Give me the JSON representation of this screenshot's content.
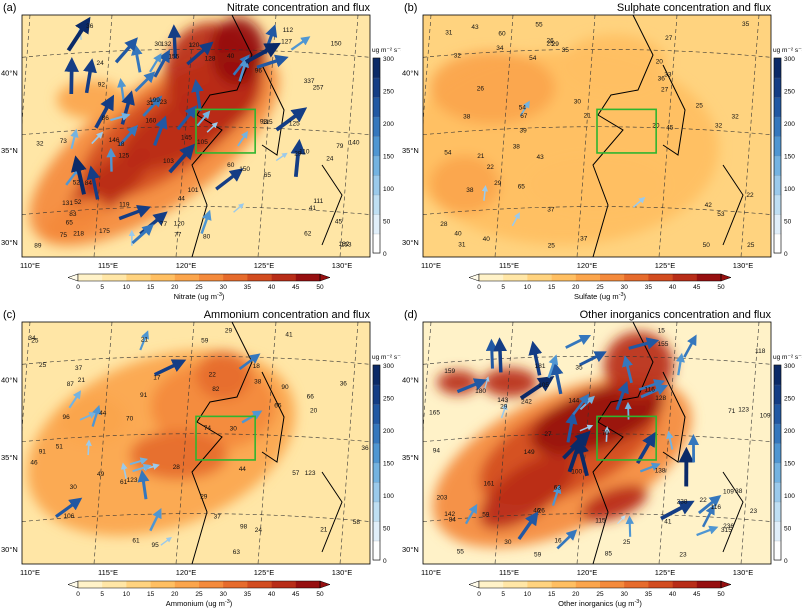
{
  "common": {
    "lon_ticks": [
      "110°E",
      "115°E",
      "120°E",
      "125°E",
      "130°E"
    ],
    "lat_ticks": [
      "40°N",
      "35°N",
      "30°N"
    ],
    "conc_ticks": [
      "0",
      "5",
      "10",
      "15",
      "20",
      "25",
      "30",
      "35",
      "40",
      "45",
      "50"
    ],
    "flux_unit": "ug m⁻² s⁻¹",
    "flux_ticks": [
      "300",
      "250",
      "200",
      "150",
      "100",
      "50",
      "0"
    ],
    "colors": {
      "conc": [
        "#fffbea",
        "#fff2c8",
        "#ffe6a6",
        "#ffd37f",
        "#ffbf62",
        "#fba54c",
        "#f48a3c",
        "#e66b2c",
        "#d24c20",
        "#b82d18",
        "#960f10"
      ],
      "flux": [
        "#ffffff",
        "#e1effa",
        "#bfdff3",
        "#9bcaeb",
        "#74b3e1",
        "#4f96d2",
        "#3577bd",
        "#2158a3",
        "#143d85",
        "#0b2a68"
      ],
      "box": "#2fb52f"
    }
  },
  "panels": [
    {
      "label": "(a)",
      "title": "Nitrate concentration and flux",
      "xlabel_text": "Nitrate (ug m",
      "xlabel_unit": "-3",
      "numbers": [
        "18",
        "60",
        "115",
        "62",
        "24",
        "73",
        "112",
        "119",
        "140",
        "125",
        "110",
        "89",
        "103",
        "182",
        "146",
        "160",
        "120",
        "125",
        "218",
        "257",
        "337",
        "199",
        "132",
        "111",
        "83",
        "80",
        "153",
        "145",
        "150",
        "120",
        "79",
        "65",
        "77",
        "155",
        "131",
        "127",
        "105",
        "96",
        "84",
        "128",
        "41",
        "101",
        "175",
        "32",
        "65",
        "86",
        "92",
        "52",
        "150",
        "31",
        "40",
        "44",
        "52",
        "29",
        "24",
        "36",
        "30",
        "45",
        "23",
        "93",
        "77",
        "75"
      ]
    },
    {
      "label": "(b)",
      "title": "Sulphate concentration and flux",
      "xlabel_text": "Sulfate (ug m",
      "xlabel_unit": "-3",
      "numbers": [
        "54",
        "38",
        "36",
        "28",
        "35",
        "60",
        "50",
        "37",
        "42",
        "26",
        "53",
        "55",
        "65",
        "67",
        "54",
        "45",
        "37",
        "40",
        "31",
        "43",
        "25",
        "29",
        "43",
        "34",
        "21",
        "20",
        "22",
        "31",
        "27",
        "26",
        "39",
        "40",
        "33",
        "21",
        "32",
        "30",
        "38",
        "22",
        "38",
        "29",
        "32",
        "54",
        "25",
        "32",
        "20",
        "35",
        "25",
        "27",
        "25"
      ]
    },
    {
      "label": "(c)",
      "title": "Ammonium concentration and flux",
      "xlabel_text": "Ammonium (ug m",
      "xlabel_unit": "-3",
      "numbers": [
        "21",
        "44",
        "36",
        "61",
        "57",
        "18",
        "82",
        "123",
        "66",
        "63",
        "29",
        "34",
        "41",
        "46",
        "98",
        "123",
        "90",
        "96",
        "91",
        "95",
        "37",
        "49",
        "61",
        "106",
        "91",
        "74",
        "87",
        "65",
        "70",
        "51",
        "38",
        "25",
        "29",
        "24",
        "21",
        "37",
        "44",
        "36",
        "20",
        "58",
        "22",
        "17",
        "21",
        "28",
        "30",
        "30",
        "59",
        "25"
      ]
    },
    {
      "label": "(d)",
      "title": "Other inorganics concentration and flux",
      "xlabel_text": "Other inorganics (ug m",
      "xlabel_unit": "-3",
      "numbers": [
        "16",
        "59",
        "46",
        "79",
        "116",
        "180",
        "149",
        "143",
        "116",
        "315",
        "181",
        "155",
        "242",
        "238",
        "165",
        "236",
        "161",
        "142",
        "118",
        "144",
        "123",
        "159",
        "115",
        "94",
        "85",
        "63",
        "84",
        "100",
        "109",
        "203",
        "55",
        "109",
        "105",
        "71",
        "138",
        "128",
        "59",
        "38",
        "35",
        "23",
        "30",
        "41",
        "27",
        "23",
        "25",
        "22",
        "15",
        "26",
        "29"
      ]
    }
  ]
}
